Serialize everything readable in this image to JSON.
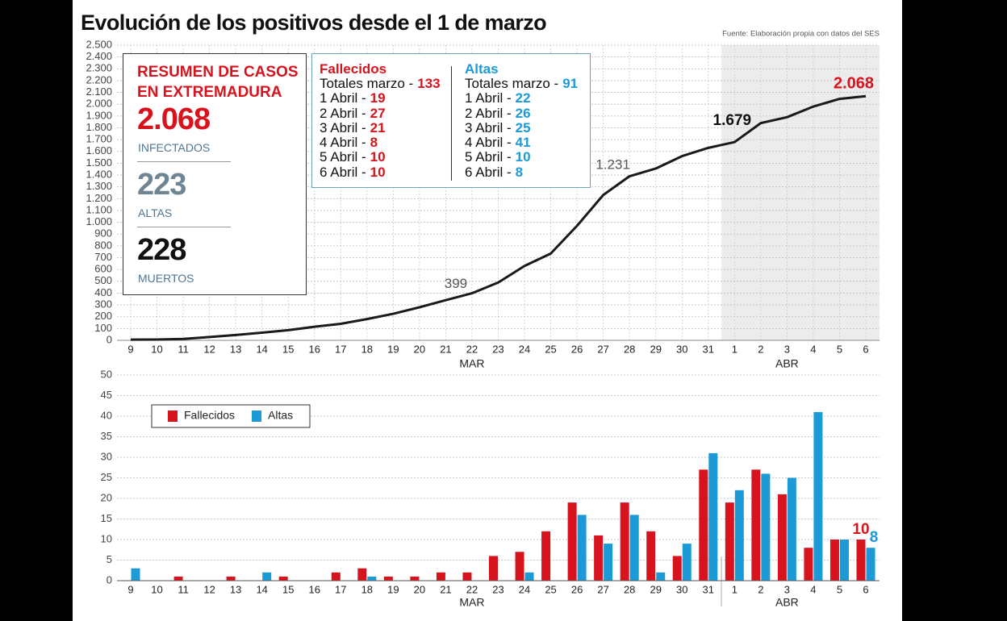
{
  "header": {
    "title": "Evolución de los positivos desde el 1 de marzo",
    "source": "Fuente: Elaboración propia con datos del SES"
  },
  "summary": {
    "title": "RESUMEN DE CASOS EN EXTREMADURA",
    "items": [
      {
        "value": "2.068",
        "label": "INFECTADOS"
      },
      {
        "value": "223",
        "label": "ALTAS"
      },
      {
        "value": "228",
        "label": "MUERTOS"
      }
    ]
  },
  "details": [
    {
      "title": "Fallecidos",
      "rows": [
        {
          "label": "Totales marzo -",
          "value": 133
        },
        {
          "label": "1 Abril -",
          "value": 19
        },
        {
          "label": "2 Abril -",
          "value": 27
        },
        {
          "label": "3 Abril -",
          "value": 21
        },
        {
          "label": "4 Abril -",
          "value": 8
        },
        {
          "label": "5 Abril -",
          "value": 10
        },
        {
          "label": "6 Abril -",
          "value": 10
        }
      ]
    },
    {
      "title": "Altas",
      "rows": [
        {
          "label": "Totales marzo -",
          "value": 91
        },
        {
          "label": "1 Abril -",
          "value": 22
        },
        {
          "label": "2 Abril -",
          "value": 26
        },
        {
          "label": "3 Abril -",
          "value": 25
        },
        {
          "label": "4 Abril -",
          "value": 41
        },
        {
          "label": "5 Abril -",
          "value": 10
        },
        {
          "label": "6 Abril -",
          "value": 8
        }
      ]
    }
  ],
  "chart_data": [
    {
      "type": "line",
      "categories": [
        "9",
        "10",
        "11",
        "12",
        "13",
        "14",
        "15",
        "16",
        "17",
        "18",
        "19",
        "20",
        "21",
        "22",
        "23",
        "24",
        "25",
        "26",
        "27",
        "28",
        "29",
        "30",
        "31",
        "1",
        "2",
        "3",
        "4",
        "5",
        "6"
      ],
      "month_labels": [
        "MAR",
        "ABR"
      ],
      "values": [
        6,
        7,
        12,
        28,
        45,
        65,
        86,
        115,
        140,
        180,
        225,
        280,
        340,
        399,
        490,
        630,
        735,
        970,
        1231,
        1390,
        1455,
        1560,
        1630,
        1679,
        1840,
        1890,
        1980,
        2045,
        2068
      ],
      "value_labels": [
        null,
        null,
        null,
        null,
        null,
        null,
        null,
        null,
        null,
        null,
        null,
        null,
        null,
        "399",
        null,
        null,
        null,
        null,
        "1.231",
        null,
        null,
        null,
        null,
        "1.679",
        null,
        null,
        null,
        null,
        "2.068"
      ],
      "color": "#1a1a1a",
      "ylim": [
        0,
        2500
      ],
      "yticks": [
        0,
        100,
        200,
        300,
        400,
        500,
        600,
        700,
        800,
        900,
        {
          "value": 1000,
          "label": "1.000"
        },
        {
          "value": 1100,
          "label": "1.100"
        },
        {
          "value": 1200,
          "label": "1.200"
        },
        {
          "value": 1300,
          "label": "1.300"
        },
        {
          "value": 1400,
          "label": "1.400"
        },
        {
          "value": 1500,
          "label": "1.500"
        },
        {
          "value": 1600,
          "label": "1.600"
        },
        {
          "value": 1700,
          "label": "1.700"
        },
        {
          "value": 1800,
          "label": "1.800"
        },
        {
          "value": 1900,
          "label": "1.900"
        },
        {
          "value": 2000,
          "label": "2.000"
        },
        {
          "value": 2100,
          "label": "2.100"
        },
        {
          "value": 2200,
          "label": "2.200"
        },
        {
          "value": 2300,
          "label": "2.300"
        },
        {
          "value": 2400,
          "label": "2.400"
        },
        {
          "value": 2500,
          "label": "2.500"
        }
      ],
      "grid": true
    },
    {
      "type": "bar",
      "categories": [
        "9",
        "10",
        "11",
        "12",
        "13",
        "14",
        "15",
        "16",
        "17",
        "18",
        "19",
        "20",
        "21",
        "22",
        "23",
        "24",
        "25",
        "26",
        "27",
        "28",
        "29",
        "30",
        "31",
        "1",
        "2",
        "3",
        "4",
        "5",
        "6"
      ],
      "month_labels": [
        "MAR",
        "ABR"
      ],
      "series": [
        {
          "name": "Fallecidos",
          "color": "#d7141e",
          "values": [
            0,
            0,
            1,
            0,
            1,
            0,
            1,
            0,
            2,
            3,
            1,
            1,
            2,
            2,
            6,
            7,
            12,
            19,
            11,
            19,
            12,
            6,
            27,
            19,
            27,
            21,
            8,
            10,
            10
          ],
          "value_labels": [
            null,
            null,
            null,
            null,
            null,
            null,
            null,
            null,
            null,
            null,
            null,
            null,
            null,
            null,
            null,
            null,
            null,
            null,
            null,
            null,
            null,
            null,
            null,
            null,
            null,
            null,
            null,
            null,
            "10"
          ]
        },
        {
          "name": "Altas",
          "color": "#1c9ad6",
          "values": [
            3,
            0,
            0,
            0,
            0,
            2,
            0,
            0,
            0,
            1,
            0,
            0,
            0,
            0,
            0,
            2,
            0,
            16,
            9,
            16,
            2,
            9,
            31,
            22,
            26,
            25,
            41,
            10,
            8
          ],
          "value_labels": [
            null,
            null,
            null,
            null,
            null,
            null,
            null,
            null,
            null,
            null,
            null,
            null,
            null,
            null,
            null,
            null,
            null,
            null,
            null,
            null,
            null,
            null,
            null,
            null,
            null,
            null,
            null,
            null,
            "8"
          ]
        }
      ],
      "ylim": [
        0,
        50
      ],
      "yticks": [
        0,
        5,
        10,
        15,
        20,
        25,
        30,
        35,
        40,
        45,
        50
      ],
      "grid": true,
      "legend": "upper-left"
    }
  ]
}
